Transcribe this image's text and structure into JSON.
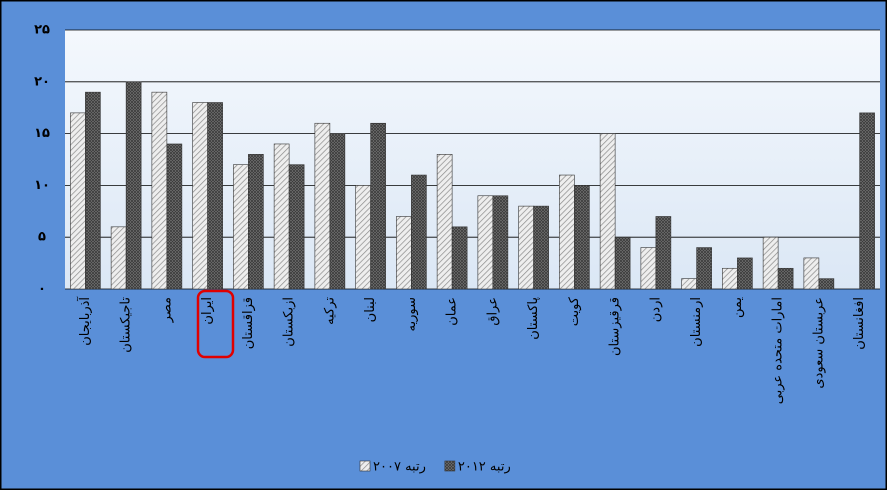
{
  "chart_data": {
    "type": "bar",
    "categories": [
      "آذربایجان",
      "تاجیکستان",
      "مصر",
      "ایران",
      "قزاقستان",
      "ازبکستان",
      "ترکیه",
      "لبنان",
      "سوریه",
      "عمان",
      "عراق",
      "پاکستان",
      "کویت",
      "قرقیزستان",
      "اردن",
      "ارمنستان",
      "یمن",
      "امارات متحده عربی",
      "عربستان سعودی",
      "افغانستان"
    ],
    "series": [
      {
        "name": "رتبه ۲۰۰۷",
        "color": "#d9d9d9",
        "values": [
          17,
          6,
          19,
          18,
          12,
          14,
          16,
          10,
          7,
          13,
          9,
          8,
          11,
          15,
          4,
          1,
          2,
          5,
          3,
          null
        ]
      },
      {
        "name": "رتبه ۲۰۱۲",
        "color": "#595959",
        "values": [
          19,
          20,
          14,
          18,
          13,
          12,
          15,
          16,
          11,
          6,
          9,
          8,
          10,
          5,
          7,
          4,
          3,
          2,
          1,
          17
        ]
      }
    ],
    "ylim": [
      0,
      25
    ],
    "yticks": [
      {
        "value": 0,
        "label": "۰"
      },
      {
        "value": 5,
        "label": "۵"
      },
      {
        "value": 10,
        "label": "۱۰"
      },
      {
        "value": 15,
        "label": "۱۵"
      },
      {
        "value": 20,
        "label": "۲۰"
      },
      {
        "value": 25,
        "label": "۲۵"
      }
    ],
    "grid": true,
    "legend": "bottom"
  }
}
